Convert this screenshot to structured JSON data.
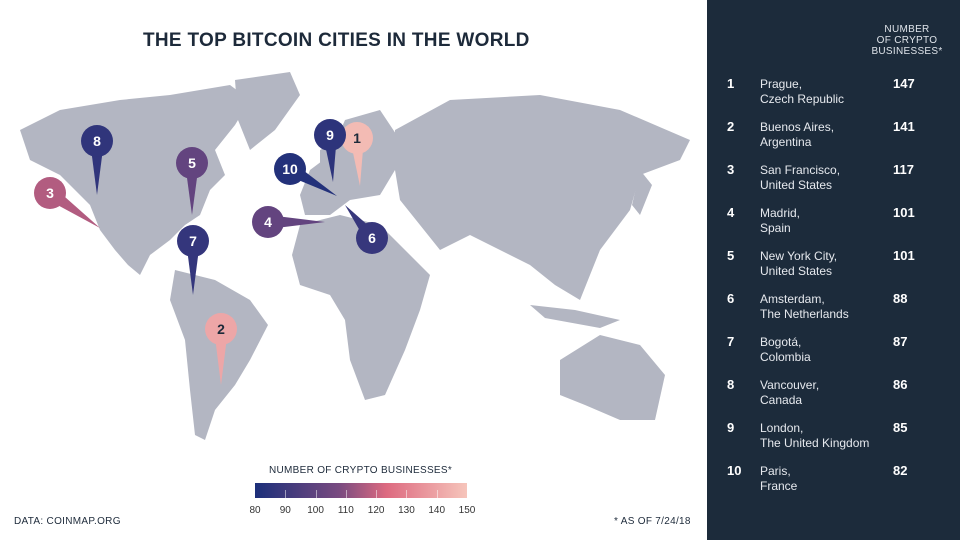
{
  "title": "THE TOP BITCOIN CITIES IN THE WORLD",
  "panel": {
    "column_header": [
      "NUMBER",
      "OF CRYPTO",
      "BUSINESSES*"
    ],
    "rows": [
      {
        "rank": "1",
        "city": "Prague,",
        "country": "Czech Republic",
        "value": "147"
      },
      {
        "rank": "2",
        "city": "Buenos Aires,",
        "country": "Argentina",
        "value": "141"
      },
      {
        "rank": "3",
        "city": "San Francisco,",
        "country": "United States",
        "value": "117"
      },
      {
        "rank": "4",
        "city": "Madrid,",
        "country": "Spain",
        "value": "101"
      },
      {
        "rank": "5",
        "city": "New York City,",
        "country": "United States",
        "value": "101"
      },
      {
        "rank": "6",
        "city": "Amsterdam,",
        "country": "The Netherlands",
        "value": "88"
      },
      {
        "rank": "7",
        "city": "Bogotá,",
        "country": "Colombia",
        "value": "87"
      },
      {
        "rank": "8",
        "city": "Vancouver,",
        "country": "Canada",
        "value": "86"
      },
      {
        "rank": "9",
        "city": "London,",
        "country": "The United Kingdom",
        "value": "85"
      },
      {
        "rank": "10",
        "city": "Paris,",
        "country": "France",
        "value": "82"
      }
    ]
  },
  "pins": [
    {
      "label": "1",
      "value": 147
    },
    {
      "label": "2",
      "value": 141
    },
    {
      "label": "3",
      "value": 117
    },
    {
      "label": "4",
      "value": 101
    },
    {
      "label": "5",
      "value": 101
    },
    {
      "label": "6",
      "value": 88
    },
    {
      "label": "7",
      "value": 87
    },
    {
      "label": "8",
      "value": 86
    },
    {
      "label": "9",
      "value": 85
    },
    {
      "label": "10",
      "value": 82
    }
  ],
  "legend": {
    "title": "NUMBER OF CRYPTO BUSINESSES*",
    "ticks": [
      "80",
      "90",
      "100",
      "110",
      "120",
      "130",
      "140",
      "150"
    ],
    "range": [
      80,
      150
    ],
    "colors": [
      "#1c2f7a",
      "#7a4b80",
      "#dd6a80",
      "#f6c5bb"
    ]
  },
  "source": "DATA: COINMAP.ORG",
  "note": "* AS OF 7/24/18",
  "colors": {
    "land": "#b3b6c2",
    "panel": "#1c2b3b"
  }
}
